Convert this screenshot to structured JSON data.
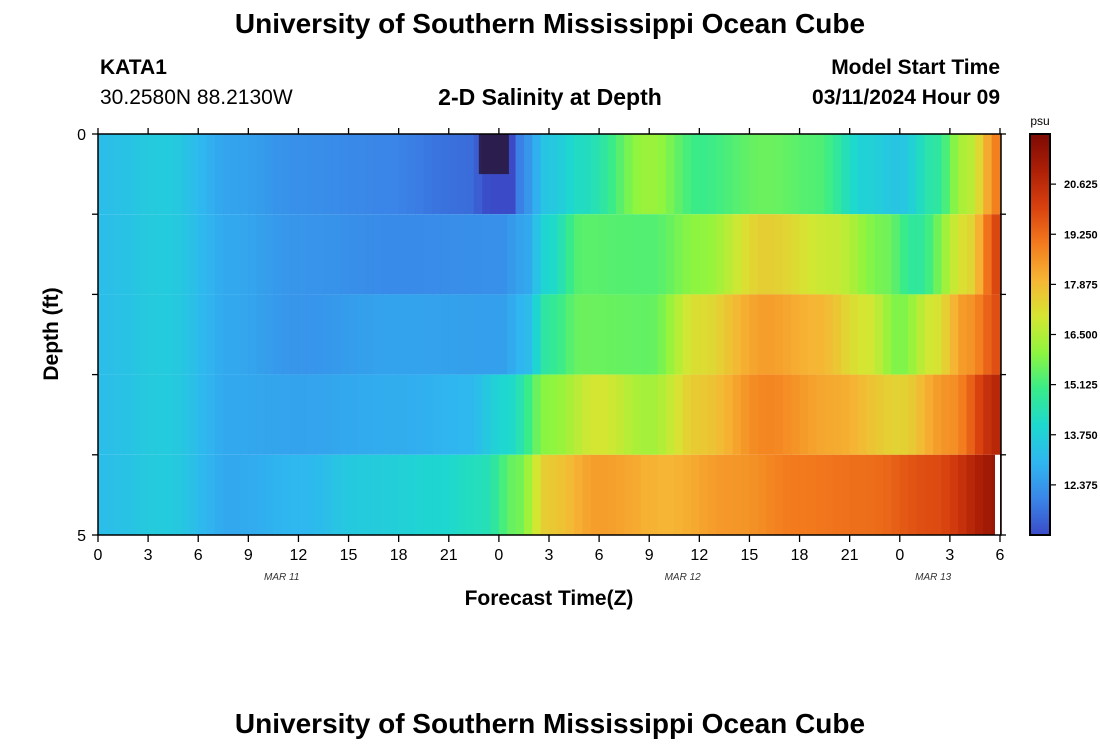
{
  "page": {
    "title": "University of Southern Mississippi Ocean Cube",
    "footer_title": "University of Southern Mississippi Ocean Cube"
  },
  "station": {
    "id": "KATA1",
    "coords": "30.2580N  88.2130W"
  },
  "plot_title": "2-D Salinity at Depth",
  "model": {
    "label": "Model Start Time",
    "value": "03/11/2024 Hour 09"
  },
  "colors": {
    "colormap": [
      "#3b4bc8",
      "#3a86e8",
      "#2fb7f0",
      "#1dd8cf",
      "#38ec8a",
      "#8ef53e",
      "#d5e632",
      "#f6b534",
      "#f37a1d",
      "#d8400f",
      "#ad1f06",
      "#7d0a04"
    ],
    "deep_dark": "#2a1a40"
  },
  "chart_data": {
    "type": "heatmap",
    "title": "2-D Salinity at Depth",
    "xlabel": "Forecast Time(Z)",
    "ylabel": "Depth (ft)",
    "x_ticks": [
      "0",
      "3",
      "6",
      "9",
      "12",
      "15",
      "18",
      "21",
      "0",
      "3",
      "6",
      "9",
      "12",
      "15",
      "18",
      "21",
      "0",
      "3",
      "6"
    ],
    "date_labels": [
      {
        "text": "MAR 11",
        "at_hour": 11
      },
      {
        "text": "MAR 12",
        "at_hour": 35
      },
      {
        "text": "MAR 13",
        "at_hour": 50
      }
    ],
    "x_range_hours": [
      0,
      54
    ],
    "y_ticks": [
      "0",
      "5"
    ],
    "y_range_ft": [
      0,
      5
    ],
    "colorbar": {
      "unit": "psu",
      "ticks": [
        "20.625",
        "19.250",
        "17.875",
        "16.500",
        "15.125",
        "13.750",
        "12.375"
      ],
      "tick_values": [
        20.625,
        19.25,
        17.875,
        16.5,
        15.125,
        13.75,
        12.375
      ],
      "range": [
        11.0,
        22.0
      ]
    },
    "layer_depths_ft": [
      0,
      1,
      2,
      3,
      4,
      5
    ],
    "profiles_psu": [
      [
        [
          0,
          13.2
        ],
        [
          4,
          13.6
        ],
        [
          8,
          12.6
        ],
        [
          12,
          12.2
        ],
        [
          17,
          12.0
        ],
        [
          22,
          11.6
        ],
        [
          24,
          10.8
        ],
        [
          24.6,
          10.6
        ],
        [
          25.5,
          12.2
        ],
        [
          27,
          13.5
        ],
        [
          29,
          14.2
        ],
        [
          33,
          16.2
        ],
        [
          36,
          15.0
        ],
        [
          40,
          15.6
        ],
        [
          43,
          15.3
        ],
        [
          46,
          13.8
        ],
        [
          48,
          13.4
        ],
        [
          50,
          14.6
        ],
        [
          52,
          16.5
        ],
        [
          54,
          19.0
        ]
      ],
      [
        [
          0,
          13.2
        ],
        [
          4,
          13.6
        ],
        [
          8,
          12.7
        ],
        [
          12,
          12.3
        ],
        [
          18,
          12.1
        ],
        [
          24,
          12.2
        ],
        [
          25.5,
          12.6
        ],
        [
          27,
          14.0
        ],
        [
          29,
          15.4
        ],
        [
          33,
          15.3
        ],
        [
          36,
          16.0
        ],
        [
          40,
          17.5
        ],
        [
          44,
          16.8
        ],
        [
          47,
          15.7
        ],
        [
          49,
          14.7
        ],
        [
          52,
          17.2
        ],
        [
          54,
          20.0
        ]
      ],
      [
        [
          0,
          13.2
        ],
        [
          4,
          13.6
        ],
        [
          8,
          12.7
        ],
        [
          12,
          12.3
        ],
        [
          18,
          12.6
        ],
        [
          24,
          12.5
        ],
        [
          25.5,
          13.0
        ],
        [
          27,
          14.8
        ],
        [
          29,
          15.6
        ],
        [
          33,
          15.5
        ],
        [
          36,
          17.2
        ],
        [
          40,
          18.4
        ],
        [
          43,
          18.0
        ],
        [
          46,
          17.0
        ],
        [
          48,
          15.8
        ],
        [
          50,
          17.0
        ],
        [
          52,
          18.5
        ],
        [
          54,
          19.8
        ]
      ],
      [
        [
          0,
          13.2
        ],
        [
          4,
          13.6
        ],
        [
          8,
          12.7
        ],
        [
          12,
          12.6
        ],
        [
          18,
          12.8
        ],
        [
          22,
          13.0
        ],
        [
          24.5,
          14.0
        ],
        [
          27,
          16.0
        ],
        [
          30,
          17.0
        ],
        [
          33,
          16.3
        ],
        [
          36,
          17.6
        ],
        [
          40,
          18.8
        ],
        [
          44,
          18.2
        ],
        [
          48,
          17.4
        ],
        [
          51,
          18.6
        ],
        [
          54,
          20.8
        ]
      ],
      [
        [
          0,
          13.2
        ],
        [
          4,
          13.6
        ],
        [
          8,
          12.7
        ],
        [
          12,
          13.0
        ],
        [
          16,
          13.6
        ],
        [
          20,
          13.9
        ],
        [
          23,
          14.3
        ],
        [
          25,
          15.6
        ],
        [
          27,
          17.6
        ],
        [
          30,
          18.4
        ],
        [
          34,
          18.0
        ],
        [
          38,
          18.5
        ],
        [
          42,
          19.0
        ],
        [
          46,
          19.2
        ],
        [
          50,
          19.8
        ],
        [
          54,
          21.4
        ]
      ],
      [
        [
          0,
          13.2
        ],
        [
          4,
          13.6
        ],
        [
          8,
          12.7
        ],
        [
          12,
          13.1
        ],
        [
          16,
          13.9
        ],
        [
          20,
          14.0
        ],
        [
          23,
          14.6
        ],
        [
          25,
          17.2
        ],
        [
          27,
          19.2
        ],
        [
          30,
          19.6
        ],
        [
          34,
          20.2
        ],
        [
          38,
          20.8
        ],
        [
          42,
          20.4
        ],
        [
          46,
          20.2
        ],
        [
          50,
          20.9
        ],
        [
          54,
          21.6
        ]
      ]
    ],
    "dark_patch": {
      "hours": [
        22.8,
        24.6
      ],
      "depth_ft": [
        0,
        0.5
      ]
    }
  }
}
